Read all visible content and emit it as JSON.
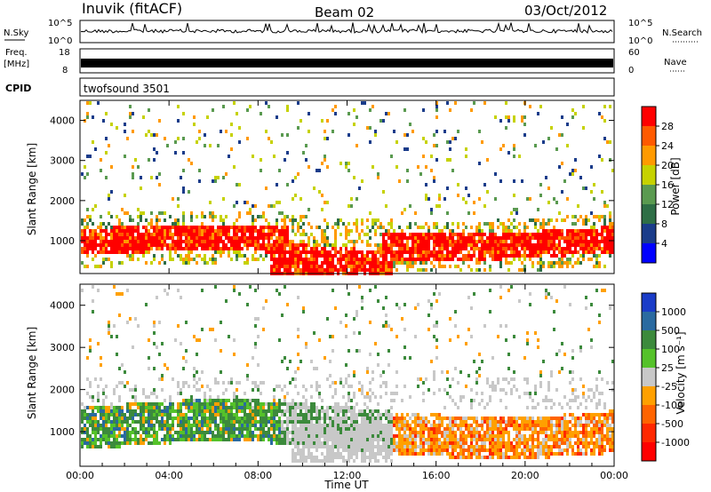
{
  "header": {
    "station": "Inuvik (fitACF)",
    "beam": "Beam 02",
    "date": "03/Oct/2012"
  },
  "strips": {
    "nsky_label": "N.Sky",
    "nsky_ticks": [
      "10^5",
      "10^0"
    ],
    "nsearch_label": "N.Search",
    "nsearch_ticks": [
      "10^5",
      "10^0"
    ],
    "freq_label_1": "Freq.",
    "freq_label_2": "[MHz]",
    "freq_ticks": [
      "18",
      "8"
    ],
    "nave_label": "Nave",
    "nave_ticks": [
      "60",
      "0"
    ],
    "cpid_label": "CPID",
    "cpid_value": "twofsound 3501"
  },
  "chart_data": [
    {
      "type": "heatmap",
      "name": "power-panel",
      "ylabel": "Slant Range [km]",
      "yticks": [
        "1000",
        "2000",
        "3000",
        "4000"
      ],
      "ylim": [
        180,
        4500
      ],
      "xlim": [
        "00:00",
        "24:00"
      ],
      "colorbar": {
        "label": "Power [dB]",
        "ticks": [
          "28",
          "24",
          "20",
          "16",
          "12",
          "8",
          "4"
        ],
        "colors": [
          "#ff0000",
          "#ff5a00",
          "#ff9a00",
          "#c6d200",
          "#5a9a50",
          "#2e6e46",
          "#1a3c8a",
          "#0000ff"
        ]
      },
      "features": [
        {
          "region": "main echo band",
          "x_range": [
            "00:00",
            "24:00"
          ],
          "y_range": [
            700,
            1500
          ],
          "power_db": 28
        },
        {
          "region": "midnight-noon descent",
          "x_range": [
            "08:30",
            "14:00"
          ],
          "y_range": [
            200,
            1000
          ],
          "power_db": 28
        },
        {
          "region": "sparse upper echoes",
          "x_range": [
            "00:00",
            "24:00"
          ],
          "y_range": [
            1800,
            4500
          ],
          "power_db": 14
        }
      ]
    },
    {
      "type": "heatmap",
      "name": "velocity-panel",
      "ylabel": "Slant Range [km]",
      "yticks": [
        "1000",
        "2000",
        "3000",
        "4000"
      ],
      "ylim": [
        180,
        4500
      ],
      "xlim": [
        "00:00",
        "24:00"
      ],
      "xlabel": "Time UT",
      "xticks": [
        "00:00",
        "04:00",
        "08:00",
        "12:00",
        "16:00",
        "20:00",
        "00:00"
      ],
      "colorbar": {
        "label": "Velocity [m s⁻¹]",
        "ticks": [
          "1000",
          "500",
          "100",
          "25",
          "-25",
          "-100",
          "-500",
          "-1000"
        ],
        "colors": [
          "#1a3cc8",
          "#2a6aa0",
          "#3c8a3c",
          "#55c22a",
          "#c8c8c8",
          "#ffa000",
          "#ff6400",
          "#ff2800",
          "#ff0000"
        ]
      },
      "features": [
        {
          "region": "morning green/blue band",
          "x_range": [
            "00:00",
            "09:00"
          ],
          "y_range": [
            600,
            1800
          ],
          "velocity": 300
        },
        {
          "region": "ground scatter near noon",
          "x_range": [
            "09:30",
            "14:00"
          ],
          "y_range": [
            300,
            1200
          ],
          "velocity": 0
        },
        {
          "region": "afternoon orange/red band",
          "x_range": [
            "14:00",
            "24:00"
          ],
          "y_range": [
            600,
            1500
          ],
          "velocity": -500
        }
      ]
    }
  ]
}
